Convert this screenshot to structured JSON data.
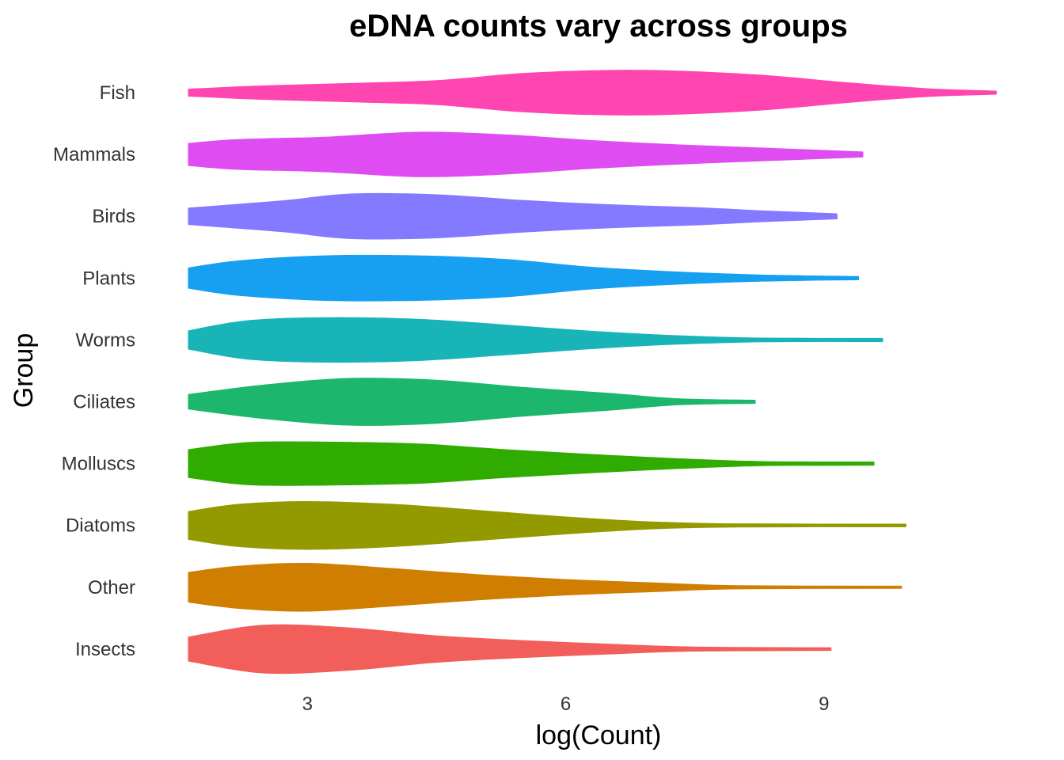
{
  "chart_data": {
    "type": "violin",
    "orientation": "horizontal",
    "title": "eDNA counts vary across groups",
    "xlabel": "log(Count)",
    "ylabel": "Group",
    "xlim": [
      1.6,
      11.2
    ],
    "xticks": [
      3,
      6,
      9
    ],
    "grid": false,
    "legend": "none",
    "series": [
      {
        "name": "Fish",
        "color": "#FF45AF",
        "min": 1.62,
        "max": 11.0,
        "density": [
          [
            1.62,
            0.14
          ],
          [
            2.5,
            0.28
          ],
          [
            3.5,
            0.38
          ],
          [
            4.5,
            0.5
          ],
          [
            5.5,
            0.8
          ],
          [
            6.5,
            0.93
          ],
          [
            7.3,
            0.9
          ],
          [
            8.3,
            0.72
          ],
          [
            9.3,
            0.4
          ],
          [
            10.2,
            0.16
          ],
          [
            11.0,
            0.06
          ]
        ]
      },
      {
        "name": "Mammals",
        "color": "#DE4CF2",
        "min": 1.62,
        "max": 9.45,
        "density": [
          [
            1.62,
            0.46
          ],
          [
            2.2,
            0.62
          ],
          [
            3.2,
            0.72
          ],
          [
            4.3,
            0.93
          ],
          [
            5.3,
            0.82
          ],
          [
            6.3,
            0.58
          ],
          [
            7.3,
            0.4
          ],
          [
            8.3,
            0.26
          ],
          [
            9.45,
            0.1
          ]
        ]
      },
      {
        "name": "Birds",
        "color": "#837AFF",
        "min": 1.62,
        "max": 9.15,
        "density": [
          [
            1.62,
            0.34
          ],
          [
            2.7,
            0.64
          ],
          [
            3.5,
            0.93
          ],
          [
            4.5,
            0.9
          ],
          [
            5.5,
            0.66
          ],
          [
            6.5,
            0.48
          ],
          [
            7.5,
            0.36
          ],
          [
            8.3,
            0.22
          ],
          [
            9.15,
            0.1
          ]
        ]
      },
      {
        "name": "Plants",
        "color": "#17A0F2",
        "min": 1.62,
        "max": 9.4,
        "density": [
          [
            1.62,
            0.42
          ],
          [
            2.2,
            0.72
          ],
          [
            3.2,
            0.93
          ],
          [
            4.3,
            0.93
          ],
          [
            5.3,
            0.78
          ],
          [
            6.3,
            0.45
          ],
          [
            7.3,
            0.25
          ],
          [
            8.3,
            0.12
          ],
          [
            9.4,
            0.06
          ]
        ]
      },
      {
        "name": "Worms",
        "color": "#19B4B8",
        "min": 1.62,
        "max": 9.68,
        "density": [
          [
            1.62,
            0.38
          ],
          [
            2.3,
            0.8
          ],
          [
            3.2,
            0.93
          ],
          [
            4.3,
            0.86
          ],
          [
            5.3,
            0.62
          ],
          [
            6.3,
            0.36
          ],
          [
            7.3,
            0.17
          ],
          [
            8.3,
            0.07
          ],
          [
            9.68,
            0.06
          ]
        ]
      },
      {
        "name": "Ciliates",
        "color": "#1CB76D",
        "min": 1.62,
        "max": 8.2,
        "density": [
          [
            1.62,
            0.3
          ],
          [
            2.5,
            0.7
          ],
          [
            3.5,
            0.98
          ],
          [
            4.5,
            0.9
          ],
          [
            5.5,
            0.6
          ],
          [
            6.5,
            0.35
          ],
          [
            7.3,
            0.12
          ],
          [
            8.2,
            0.06
          ]
        ]
      },
      {
        "name": "Molluscs",
        "color": "#30AC00",
        "min": 1.62,
        "max": 9.58,
        "density": [
          [
            1.62,
            0.58
          ],
          [
            2.3,
            0.88
          ],
          [
            3.2,
            0.9
          ],
          [
            4.3,
            0.82
          ],
          [
            5.3,
            0.58
          ],
          [
            6.3,
            0.38
          ],
          [
            7.3,
            0.2
          ],
          [
            8.3,
            0.08
          ],
          [
            9.58,
            0.06
          ]
        ]
      },
      {
        "name": "Diatoms",
        "color": "#939A00",
        "min": 1.62,
        "max": 9.95,
        "density": [
          [
            1.62,
            0.58
          ],
          [
            2.2,
            0.88
          ],
          [
            3.0,
            1.0
          ],
          [
            4.0,
            0.88
          ],
          [
            5.0,
            0.62
          ],
          [
            6.0,
            0.35
          ],
          [
            7.0,
            0.14
          ],
          [
            8.0,
            0.06
          ],
          [
            9.95,
            0.05
          ]
        ]
      },
      {
        "name": "Other",
        "color": "#D07E00",
        "min": 1.62,
        "max": 9.9,
        "density": [
          [
            1.62,
            0.62
          ],
          [
            2.2,
            0.88
          ],
          [
            3.0,
            1.0
          ],
          [
            4.0,
            0.78
          ],
          [
            5.0,
            0.52
          ],
          [
            6.0,
            0.32
          ],
          [
            7.0,
            0.18
          ],
          [
            8.0,
            0.06
          ],
          [
            9.9,
            0.04
          ]
        ]
      },
      {
        "name": "Insects",
        "color": "#F25E5A",
        "min": 1.62,
        "max": 9.08,
        "density": [
          [
            1.62,
            0.5
          ],
          [
            2.5,
            1.0
          ],
          [
            3.5,
            0.88
          ],
          [
            4.5,
            0.55
          ],
          [
            5.5,
            0.35
          ],
          [
            6.5,
            0.2
          ],
          [
            7.5,
            0.08
          ],
          [
            9.08,
            0.05
          ]
        ]
      }
    ]
  }
}
